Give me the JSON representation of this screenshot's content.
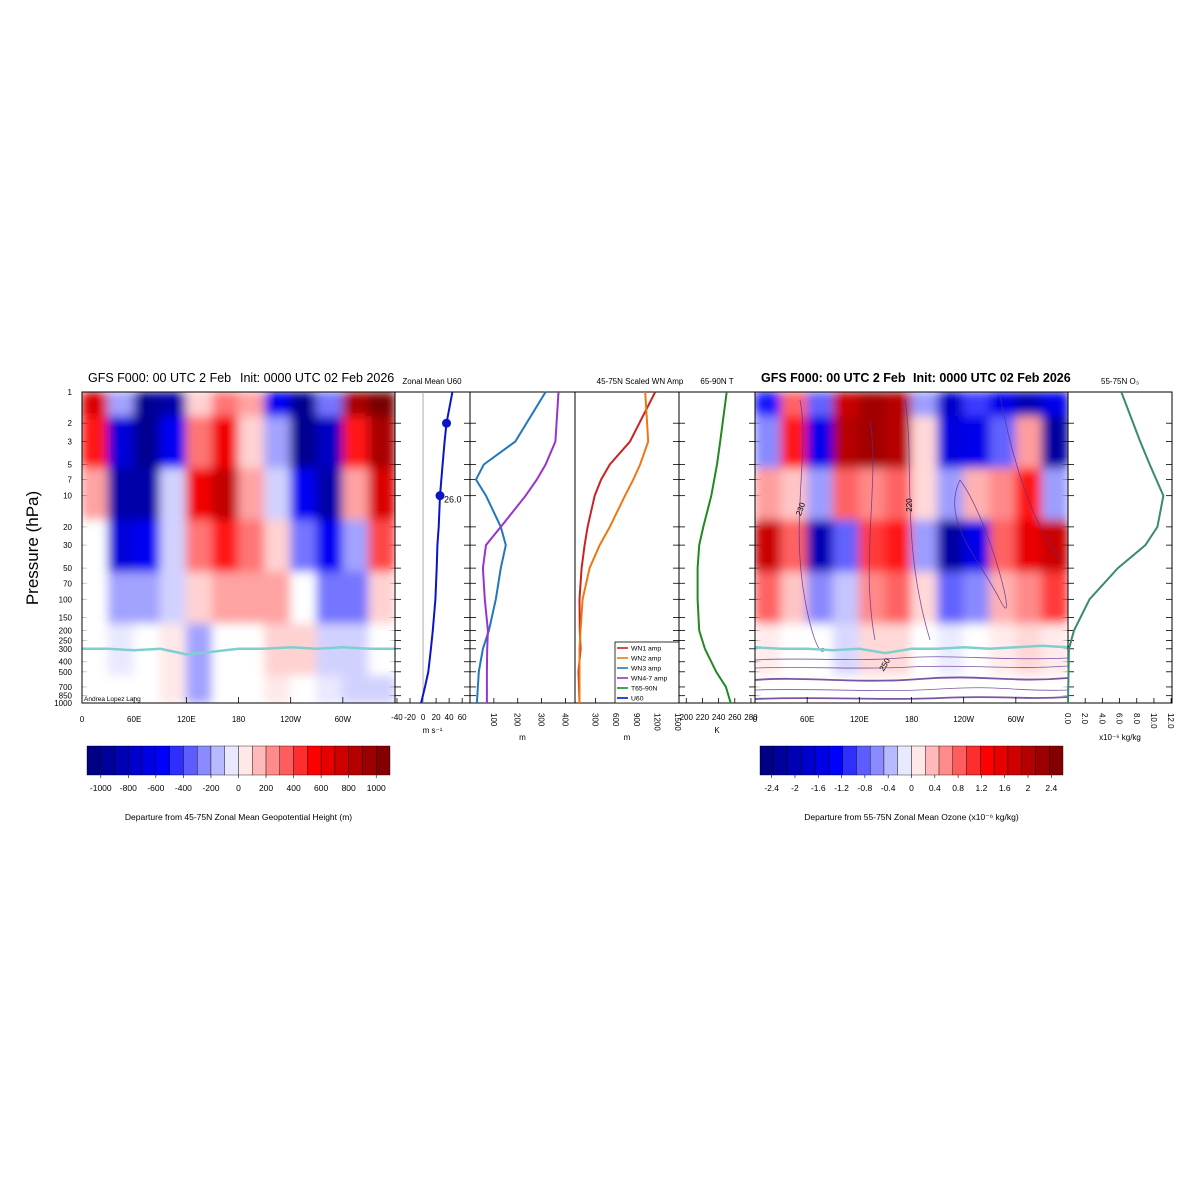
{
  "chart_data": [
    {
      "type": "heatmap",
      "title": "GFS F000: 00 UTC 2 Feb",
      "subtitle": "Init: 0000 UTC 02 Feb 2026",
      "y_label": "Pressure (hPa)",
      "credit": "Andrea Lopez Lang",
      "log_y": true,
      "ylim": [
        1,
        1000
      ],
      "yticks": [
        1,
        2,
        3,
        5,
        7,
        10,
        20,
        30,
        50,
        70,
        100,
        150,
        200,
        250,
        300,
        400,
        500,
        700,
        850,
        1000
      ],
      "xlim": [
        0,
        360
      ],
      "xticks": [
        0,
        {
          "value": 60,
          "label": "60E"
        },
        {
          "value": 120,
          "label": "120E"
        },
        180,
        {
          "value": 240,
          "label": "120W"
        },
        {
          "value": 300,
          "label": "60W"
        }
      ],
      "x": [
        15,
        45,
        75,
        105,
        135,
        165,
        195,
        225,
        255,
        285,
        315,
        345
      ],
      "y": [
        1,
        3,
        10,
        30,
        100,
        300,
        1000
      ],
      "z": [
        [
          700,
          -200,
          -1000,
          -900,
          100,
          300,
          200,
          -600,
          -1000,
          -300,
          900,
          1100
        ],
        [
          500,
          -700,
          -1000,
          -600,
          300,
          600,
          100,
          -200,
          -1000,
          -800,
          500,
          900
        ],
        [
          200,
          -900,
          -900,
          -100,
          600,
          800,
          200,
          -100,
          -600,
          -900,
          200,
          700
        ],
        [
          0,
          -700,
          -600,
          -100,
          300,
          500,
          300,
          100,
          -300,
          -600,
          -200,
          400
        ],
        [
          0,
          -200,
          -200,
          -100,
          100,
          200,
          200,
          200,
          0,
          -300,
          -300,
          100
        ],
        [
          0,
          -50,
          0,
          50,
          -200,
          0,
          0,
          100,
          100,
          -100,
          -100,
          0
        ],
        [
          0,
          0,
          0,
          50,
          -200,
          0,
          0,
          50,
          0,
          -50,
          -100,
          -100
        ]
      ],
      "tropopause": {
        "x": [
          0,
          30,
          60,
          90,
          120,
          150,
          180,
          210,
          240,
          270,
          300,
          330,
          360
        ],
        "values": [
          300,
          300,
          310,
          300,
          340,
          320,
          300,
          300,
          290,
          300,
          290,
          300,
          300
        ]
      },
      "colorbar": {
        "label": "Departure from 45-75N Zonal Mean Geopotential Height (m)",
        "lim": [
          -1100,
          1100
        ],
        "ticks": [
          -1000,
          -800,
          -600,
          -400,
          -200,
          0,
          200,
          400,
          600,
          800,
          1000
        ]
      }
    },
    {
      "type": "line",
      "title": "Zonal Mean U60",
      "x_label": "m s⁻¹",
      "xlim": [
        -43,
        72
      ],
      "xticks": [
        -40,
        -20,
        0,
        20,
        40,
        60
      ],
      "series": [
        {
          "name": "U60",
          "color": "#0a14c8",
          "y": [
            1,
            2,
            3,
            5,
            10,
            20,
            30,
            50,
            100,
            200,
            300,
            500,
            700,
            1000
          ],
          "values": [
            45,
            36,
            33,
            30,
            26,
            24,
            22,
            21,
            19,
            15,
            12,
            8,
            3,
            -3
          ],
          "value_labels": [
            null,
            null,
            null,
            null,
            "26.0",
            null,
            null,
            null,
            null,
            null,
            null,
            null,
            null,
            null
          ],
          "marker_levels": [
            2,
            10
          ]
        }
      ]
    },
    {
      "type": "line",
      "title": "45-75N Scaled WN Amp",
      "legend": "lower right",
      "x_label": "m",
      "xlim": [
        0,
        440
      ],
      "xticks": [
        100,
        200,
        300,
        400
      ],
      "x2_label": "m",
      "x2lim": [
        0,
        1515
      ],
      "x2ticks": [
        300,
        600,
        900,
        1200,
        1500
      ],
      "series": [
        {
          "name": "WN1 amp",
          "color": "#cc2222",
          "axis": "x2",
          "y": [
            1,
            3,
            5,
            7,
            10,
            20,
            30,
            50,
            100,
            200,
            300,
            500,
            1000
          ],
          "values": [
            1169,
            801,
            507,
            380,
            287,
            184,
            140,
            96,
            66,
            70,
            81,
            51,
            66
          ]
        },
        {
          "name": "WN2 amp",
          "color": "#ee7711",
          "axis": "x2",
          "y": [
            1,
            3,
            5,
            7,
            10,
            20,
            30,
            50,
            100,
            200,
            300,
            500,
            1000
          ],
          "values": [
            1022,
            1066,
            949,
            850,
            728,
            507,
            360,
            213,
            110,
            80,
            66,
            66,
            66
          ]
        },
        {
          "name": "WN3 amp",
          "color": "#2277bb",
          "y": [
            1,
            3,
            5,
            7,
            10,
            20,
            30,
            50,
            100,
            200,
            300,
            500,
            1000
          ],
          "values": [
            317,
            190,
            58,
            25,
            67,
            129,
            150,
            129,
            108,
            79,
            54,
            37,
            29
          ]
        },
        {
          "name": "WN4-7 amp",
          "color": "#9933cc",
          "y": [
            1,
            3,
            5,
            7,
            10,
            20,
            30,
            50,
            100,
            200,
            300,
            500,
            1000
          ],
          "values": [
            371,
            358,
            317,
            280,
            233,
            129,
            67,
            54,
            62,
            75,
            72,
            71,
            71
          ]
        }
      ]
    },
    {
      "type": "line",
      "title": "65-90N T",
      "x_label": "K",
      "xlim": [
        191,
        285
      ],
      "xticks": [
        200,
        220,
        240,
        260,
        280
      ],
      "series": [
        {
          "name": "T65-90N",
          "color": "#228822",
          "y": [
            1,
            3,
            5,
            10,
            20,
            30,
            50,
            100,
            200,
            300,
            500,
            700,
            1000
          ],
          "values": [
            250,
            242,
            238,
            231,
            221,
            216,
            214,
            214,
            216,
            223,
            237,
            249,
            255
          ]
        }
      ]
    },
    {
      "type": "heatmap",
      "title": "GFS F000: 00 UTC 2 Feb",
      "subtitle": "Init: 0000 UTC 02 Feb 2026",
      "xlim": [
        0,
        360
      ],
      "xticks": [
        0,
        {
          "value": 60,
          "label": "60E"
        },
        {
          "value": 120,
          "label": "120E"
        },
        180,
        {
          "value": 240,
          "label": "120W"
        },
        {
          "value": 300,
          "label": "60W"
        }
      ],
      "x": [
        15,
        45,
        75,
        105,
        135,
        165,
        195,
        225,
        255,
        285,
        315,
        345
      ],
      "y": [
        1,
        3,
        10,
        30,
        100,
        300,
        1000
      ],
      "z": [
        [
          -1.2,
          0.8,
          -0.8,
          1.8,
          2.2,
          2.0,
          -0.5,
          -1.8,
          -1.0,
          -1.5,
          -2.0,
          -1.5
        ],
        [
          -0.6,
          1.2,
          -1.5,
          2.0,
          2.2,
          2.0,
          0.2,
          -1.6,
          -1.5,
          -0.8,
          0.5,
          -2.2
        ],
        [
          0.5,
          0.3,
          -0.5,
          0.8,
          0.6,
          0.8,
          0.2,
          -0.5,
          0.4,
          0.6,
          1.2,
          -0.5
        ],
        [
          1.8,
          0.8,
          -2.0,
          -0.8,
          1.0,
          1.2,
          -0.5,
          -2.2,
          -1.5,
          0.8,
          1.5,
          1.8
        ],
        [
          0.8,
          0.3,
          -0.6,
          -0.3,
          0.6,
          0.8,
          0.2,
          -0.8,
          -0.6,
          0.4,
          0.6,
          1.0
        ],
        [
          0.1,
          0,
          0,
          -0.2,
          0.2,
          0.2,
          0,
          -0.1,
          0,
          0.1,
          0.2,
          0.1
        ],
        [
          0,
          0,
          0,
          0,
          0,
          0,
          0,
          0,
          0,
          0,
          0,
          0
        ]
      ],
      "tropopause": {
        "x": [
          0,
          30,
          60,
          90,
          120,
          150,
          180,
          210,
          240,
          270,
          300,
          330,
          360
        ],
        "values": [
          290,
          300,
          300,
          310,
          300,
          330,
          300,
          300,
          290,
          300,
          290,
          280,
          290
        ]
      },
      "contour_labels": [
        230,
        220,
        250
      ],
      "colorbar": {
        "label": "Departure from 55-75N Zonal Mean Ozone (x10⁻⁶ kg/kg)",
        "lim": [
          -2.6,
          2.6
        ],
        "ticks": [
          -2.4,
          -2,
          -1.6,
          -1.2,
          -0.8,
          -0.4,
          0,
          0.4,
          0.8,
          1.2,
          1.6,
          2,
          2.4
        ]
      }
    },
    {
      "type": "line",
      "title": "55-75N O₃",
      "x_label": "x10⁻⁶ kg/kg",
      "xlim": [
        0,
        12.1
      ],
      "xticks": [
        {
          "value": 0,
          "label": "0.0"
        },
        {
          "value": 2,
          "label": "2.0"
        },
        {
          "value": 4,
          "label": "4.0"
        },
        {
          "value": 6,
          "label": "6.0"
        },
        {
          "value": 8,
          "label": "8.0"
        },
        {
          "value": 10,
          "label": "10.0"
        },
        {
          "value": 12,
          "label": "12.0"
        }
      ],
      "series": [
        {
          "name": "O₃",
          "color": "#3a8a70",
          "y": [
            1,
            3,
            5,
            10,
            20,
            30,
            50,
            100,
            200,
            300,
            1000
          ],
          "values": [
            6.2,
            8.4,
            9.5,
            11.1,
            10.4,
            9.0,
            5.8,
            2.5,
            0.7,
            0.1,
            0
          ]
        }
      ]
    }
  ]
}
